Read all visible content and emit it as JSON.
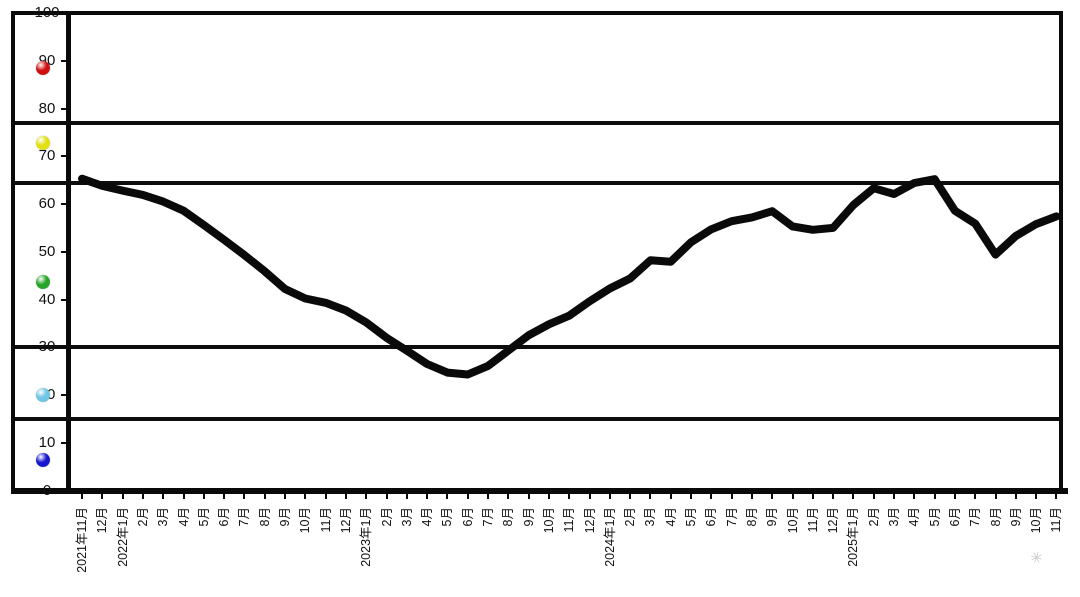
{
  "chart_data": {
    "type": "line",
    "title": "",
    "xlabel": "",
    "ylabel": "",
    "ylim": [
      0,
      100
    ],
    "y_ticks": [
      100,
      90,
      80,
      70,
      60,
      50,
      40,
      30,
      20,
      10,
      0
    ],
    "zone_boundaries": [
      77,
      64.5,
      30,
      15
    ],
    "grid": "horizontal zone boundary lines only",
    "legend_position": "colored signal balls along left axis",
    "series_color": "#0a0a0a",
    "x_labels": [
      "2021年11月",
      "12月",
      "2022年1月",
      "2月",
      "3月",
      "4月",
      "5月",
      "6月",
      "7月",
      "8月",
      "9月",
      "10月",
      "11月",
      "12月",
      "2023年1月",
      "2月",
      "3月",
      "4月",
      "5月",
      "6月",
      "7月",
      "8月",
      "9月",
      "10月",
      "11月",
      "12月",
      "2024年1月",
      "2月",
      "3月",
      "4月",
      "5月",
      "6月",
      "7月",
      "8月",
      "9月",
      "10月",
      "11月",
      "12月",
      "2025年1月",
      "2月",
      "3月",
      "4月",
      "5月",
      "6月",
      "7月",
      "8月",
      "9月",
      "10月",
      "11月"
    ],
    "values": [
      65.3,
      63.8,
      62.8,
      61.9,
      60.5,
      58.6,
      55.6,
      52.5,
      49.3,
      45.9,
      42.2,
      40.2,
      39.3,
      37.7,
      35.2,
      32.0,
      29.3,
      26.5,
      24.7,
      24.3,
      26.1,
      29.3,
      32.5,
      34.8,
      36.6,
      39.6,
      42.3,
      44.4,
      48.2,
      47.9,
      52.0,
      54.7,
      56.4,
      57.2,
      58.5,
      55.3,
      54.6,
      55.0,
      59.8,
      63.3,
      62.1,
      64.4,
      65.2,
      58.6,
      55.9,
      49.4,
      53.3,
      55.8,
      57.4
    ],
    "legend_balls": [
      {
        "name": "red",
        "color": "#d01010",
        "value": 88.5
      },
      {
        "name": "yellow",
        "color": "#e2e012",
        "value": 72.7
      },
      {
        "name": "green",
        "color": "#28a428",
        "value": 43.6
      },
      {
        "name": "light-blue",
        "color": "#6ec6e4",
        "value": 20.1
      },
      {
        "name": "blue",
        "color": "#1717cf",
        "value": 6.3
      }
    ]
  },
  "watermark": {
    "glyph": "✳"
  }
}
